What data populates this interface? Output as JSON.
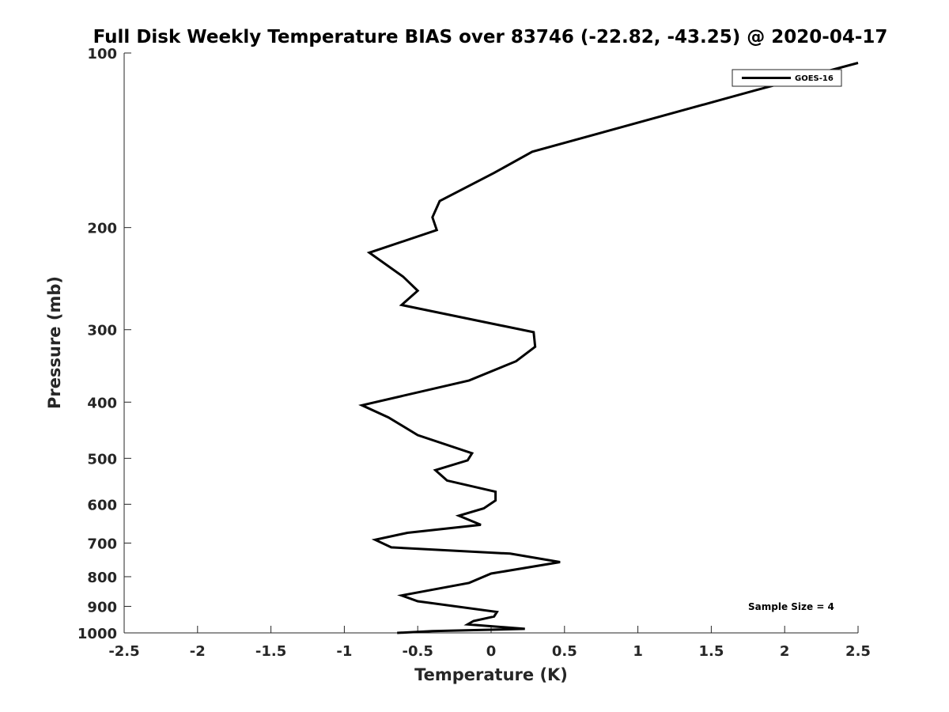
{
  "chart_data": {
    "type": "line",
    "title": "Full Disk Weekly Temperature BIAS over 83746 (-22.82, -43.25) @ 2020-04-17",
    "xlabel": "Temperature (K)",
    "ylabel": "Pressure (mb)",
    "xlim": [
      -2.5,
      2.5
    ],
    "ylim": [
      100,
      1000
    ],
    "y_scale": "log",
    "y_reversed": true,
    "x_ticks": [
      "-2.5",
      "-2",
      "-1.5",
      "-1",
      "-0.5",
      "0",
      "0.5",
      "1",
      "1.5",
      "2",
      "2.5"
    ],
    "y_ticks": [
      "100",
      "200",
      "300",
      "400",
      "500",
      "600",
      "700",
      "800",
      "900",
      "1000"
    ],
    "grid": false,
    "legend": {
      "position": "top-right",
      "entries": [
        "GOES-16"
      ]
    },
    "annotation": "Sample Size = 4",
    "series": [
      {
        "name": "GOES-16",
        "color": "#000000",
        "points": [
          [
            2.5,
            104
          ],
          [
            1.8,
            116
          ],
          [
            0.28,
            148
          ],
          [
            0.02,
            161
          ],
          [
            -0.35,
            180
          ],
          [
            -0.4,
            192
          ],
          [
            -0.37,
            202
          ],
          [
            -0.83,
            221
          ],
          [
            -0.6,
            243
          ],
          [
            -0.5,
            257
          ],
          [
            -0.61,
            272
          ],
          [
            0.29,
            303
          ],
          [
            0.3,
            321
          ],
          [
            0.17,
            340
          ],
          [
            -0.15,
            367
          ],
          [
            -0.88,
            405
          ],
          [
            -0.7,
            425
          ],
          [
            -0.5,
            456
          ],
          [
            -0.13,
            490
          ],
          [
            -0.16,
            504
          ],
          [
            -0.38,
            524
          ],
          [
            -0.3,
            546
          ],
          [
            0.03,
            571
          ],
          [
            0.03,
            591
          ],
          [
            -0.05,
            610
          ],
          [
            -0.22,
            628
          ],
          [
            -0.07,
            651
          ],
          [
            -0.57,
            672
          ],
          [
            -0.79,
            691
          ],
          [
            -0.68,
            712
          ],
          [
            0.13,
            730
          ],
          [
            0.47,
            755
          ],
          [
            0.0,
            790
          ],
          [
            -0.15,
            820
          ],
          [
            -0.61,
            862
          ],
          [
            -0.5,
            882
          ],
          [
            0.04,
            920
          ],
          [
            0.02,
            937
          ],
          [
            -0.12,
            954
          ],
          [
            -0.16,
            967
          ],
          [
            0.23,
            984
          ],
          [
            -0.4,
            993
          ],
          [
            -0.64,
            1000
          ]
        ]
      }
    ]
  }
}
